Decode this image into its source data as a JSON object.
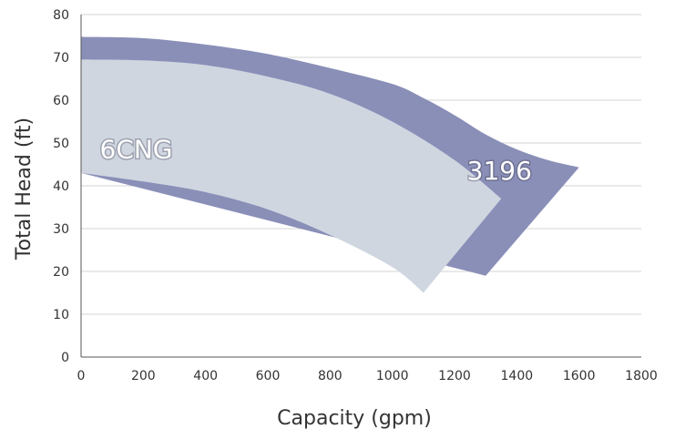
{
  "chart_data": {
    "type": "area",
    "title": "",
    "xlabel": "Capacity (gpm)",
    "ylabel": "Total Head (ft)",
    "xlim": [
      0,
      1800
    ],
    "ylim": [
      0,
      80
    ],
    "x_ticks": [
      "0",
      "200",
      "400",
      "600",
      "800",
      "1000",
      "1200",
      "1400",
      "1600",
      "1800"
    ],
    "y_ticks": [
      "0",
      "10",
      "20",
      "30",
      "40",
      "50",
      "60",
      "70",
      "80"
    ],
    "grid": "horizontal",
    "legend": "none",
    "series": [
      {
        "name": "3196",
        "color": "#8a8fb8",
        "upper": [
          [
            0,
            74.8
          ],
          [
            200,
            74.5
          ],
          [
            400,
            73.0
          ],
          [
            600,
            70.8
          ],
          [
            800,
            67.5
          ],
          [
            1000,
            63.8
          ],
          [
            1100,
            60.5
          ],
          [
            1200,
            56.5
          ],
          [
            1300,
            52.0
          ],
          [
            1400,
            48.5
          ],
          [
            1500,
            46.0
          ],
          [
            1600,
            44.3
          ]
        ],
        "tip": [
          1300,
          19.0
        ],
        "lower": [
          [
            0,
            43.0
          ]
        ]
      },
      {
        "name": "6CNG",
        "color": "#cfd6e0",
        "upper": [
          [
            0,
            69.5
          ],
          [
            200,
            69.3
          ],
          [
            400,
            68.2
          ],
          [
            600,
            65.5
          ],
          [
            800,
            61.5
          ],
          [
            1000,
            55.0
          ],
          [
            1200,
            46.0
          ],
          [
            1350,
            37.0
          ]
        ],
        "tip": [
          1100,
          15.0
        ],
        "lower": [
          [
            0,
            43.0
          ],
          [
            200,
            41.0
          ],
          [
            400,
            38.5
          ],
          [
            600,
            34.5
          ],
          [
            800,
            28.5
          ],
          [
            1000,
            21.0
          ],
          [
            1100,
            15.0
          ]
        ]
      }
    ]
  }
}
